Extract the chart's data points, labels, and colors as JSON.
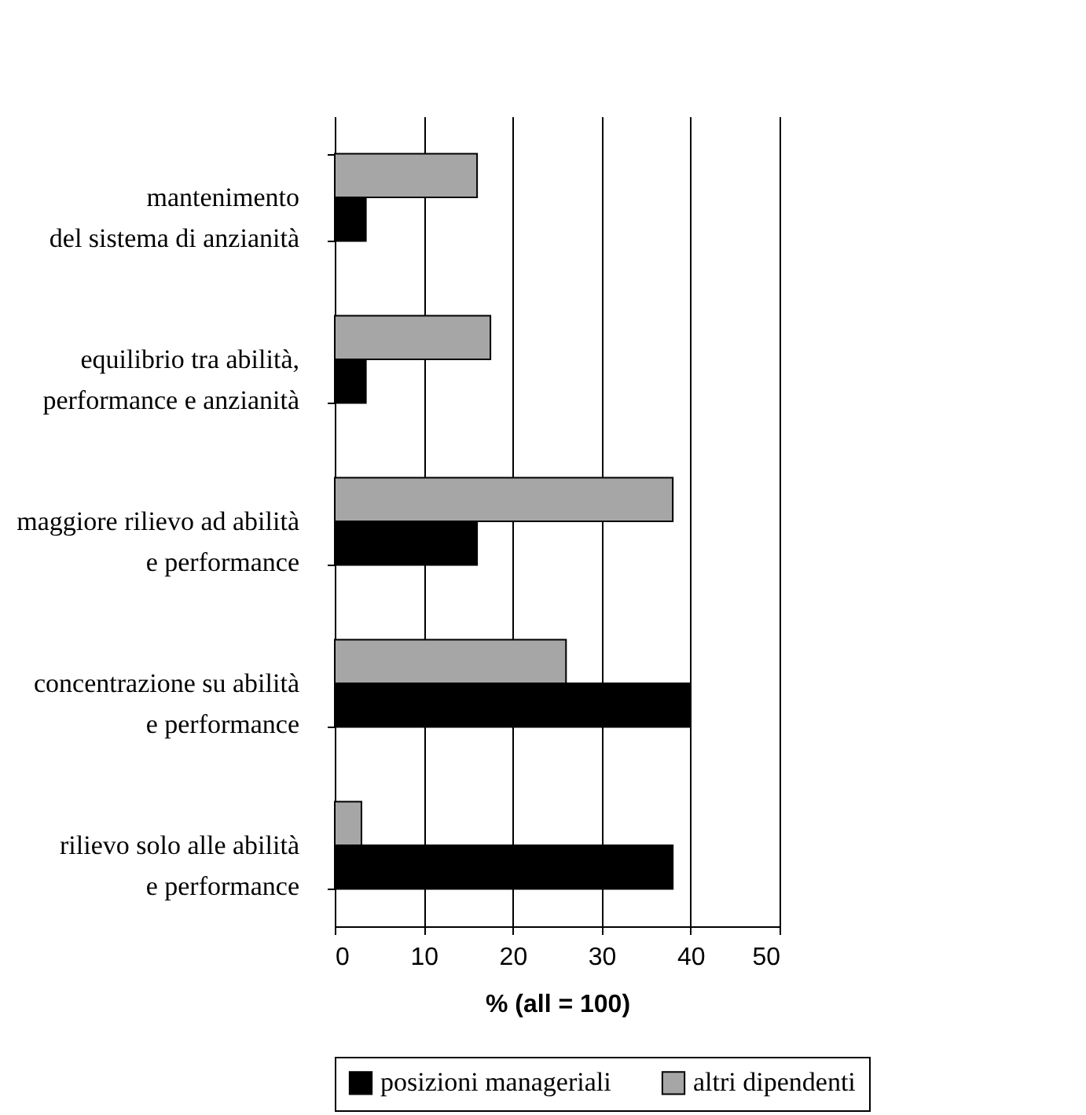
{
  "chart_data": {
    "type": "bar",
    "orientation": "horizontal",
    "xlabel": "% (all = 100)",
    "categories": [
      "mantenimento\ndel sistema di anzianità",
      "equilibrio tra abilità,\nperformance e anzianità",
      "maggiore rilievo ad abilità\ne performance",
      "concentrazione su abilità\ne performance",
      "rilievo solo alle abilità\ne performance"
    ],
    "series": [
      {
        "name": "posizioni manageriali",
        "color": "#000000",
        "values": [
          3.5,
          3.5,
          16,
          40,
          38
        ]
      },
      {
        "name": "altri dipendenti",
        "color": "#a6a6a6",
        "values": [
          16,
          17.5,
          38,
          26,
          3
        ]
      }
    ],
    "xlim": [
      0,
      50
    ],
    "xticks": [
      0,
      10,
      20,
      30,
      40,
      50
    ],
    "grid": "x",
    "legend": "bottom"
  }
}
